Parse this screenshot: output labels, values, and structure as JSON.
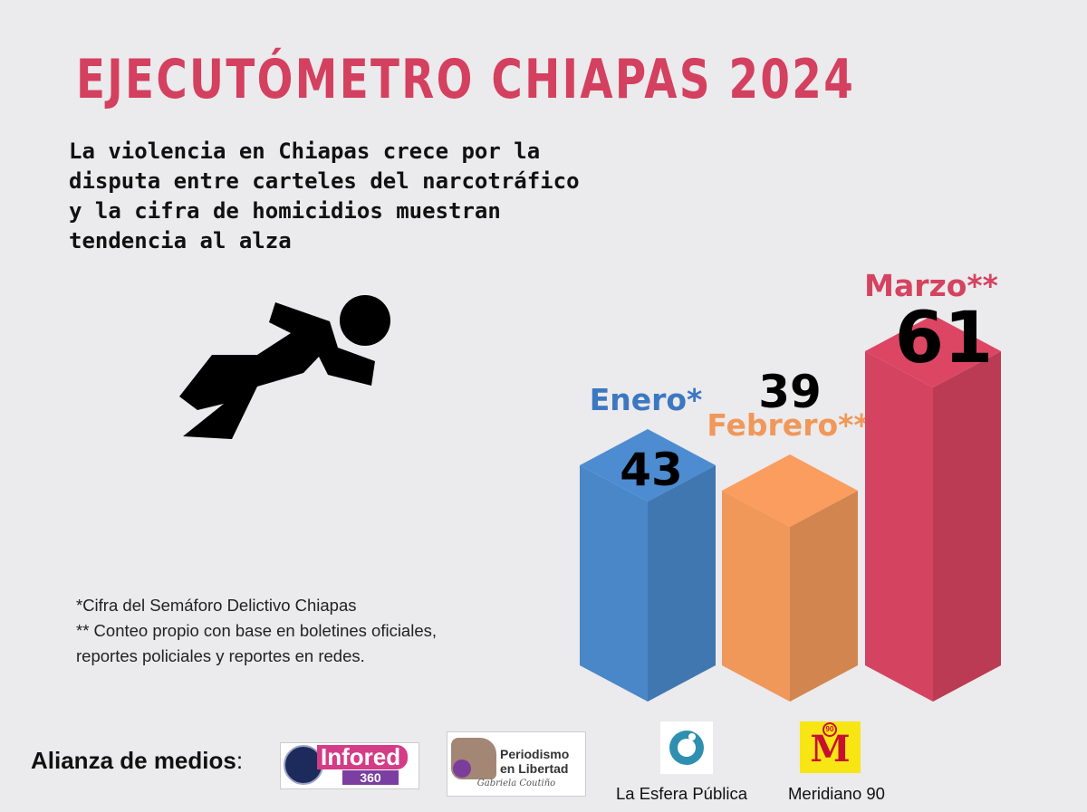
{
  "header": {
    "title": "EJECUTÓMETRO CHIAPAS 2024",
    "subtitle_lines": [
      "La violencia en Chiapas crece por la",
      "disputa entre carteles del narcotráfico",
      "y la cifra de homicidios muestran",
      "tendencia al alza"
    ]
  },
  "icon": "falling-person-icon",
  "chart_data": {
    "type": "bar",
    "categories": [
      "Enero*",
      "Febrero**",
      "Marzo**"
    ],
    "values": [
      43,
      39,
      61
    ],
    "title": "",
    "xlabel": "",
    "ylabel": "",
    "colors": [
      "#4a87c9",
      "#f0975a",
      "#d4435f"
    ],
    "label_colors": [
      "#3c78c2",
      "#f0975a",
      "#d4435f"
    ]
  },
  "footnotes": [
    "*Cifra del Semáforo Delictivo Chiapas",
    "** Conteo propio con base en boletines oficiales,",
    "reportes policiales y reportes en redes."
  ],
  "alliance": {
    "label": "Alianza de medios",
    "colon": ":",
    "logos": {
      "infored": {
        "name": "Infored",
        "suffix": "360"
      },
      "periodismo": {
        "line1": "Periodismo",
        "line2": "en Libertad",
        "signature": "Gabriela Coutiño"
      },
      "esfera": {
        "caption": "La Esfera Pública"
      },
      "meridiano": {
        "letter": "M",
        "badge": "90",
        "caption": "Meridiano 90"
      }
    }
  },
  "palette": {
    "background": "#ebeaec",
    "title": "#d4405f",
    "text": "#111111"
  }
}
